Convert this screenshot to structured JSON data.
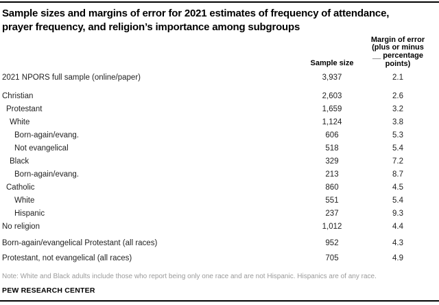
{
  "title_lines": [
    "Sample sizes and margins of error for 2021 estimates of frequency of attendance,",
    "prayer frequency, and religion’s importance among subgroups"
  ],
  "chart_data": {
    "type": "table",
    "title": "Sample sizes and margins of error for 2021 estimates of frequency of attendance, prayer frequency, and religion’s importance among subgroups",
    "columns": {
      "label": "",
      "sample_size": "Sample size",
      "margin_of_error_lines": [
        "Margin of error",
        "(plus or minus",
        "__ percentage",
        "points)"
      ]
    },
    "rows": [
      {
        "label": "2021 NPORS full sample (online/paper)",
        "indent": 0,
        "sample_size": "3,937",
        "margin_of_error": "2.1"
      },
      {
        "label": "Christian",
        "indent": 0,
        "sample_size": "2,603",
        "margin_of_error": "2.6"
      },
      {
        "label": "Protestant",
        "indent": 1,
        "sample_size": "1,659",
        "margin_of_error": "3.2"
      },
      {
        "label": "White",
        "indent": 2,
        "sample_size": "1,124",
        "margin_of_error": "3.8"
      },
      {
        "label": "Born-again/evang.",
        "indent": 3,
        "sample_size": "606",
        "margin_of_error": "5.3"
      },
      {
        "label": "Not evangelical",
        "indent": 3,
        "sample_size": "518",
        "margin_of_error": "5.4"
      },
      {
        "label": "Black",
        "indent": 2,
        "sample_size": "329",
        "margin_of_error": "7.2"
      },
      {
        "label": "Born-again/evang.",
        "indent": 3,
        "sample_size": "213",
        "margin_of_error": "8.7"
      },
      {
        "label": "Catholic",
        "indent": 1,
        "sample_size": "860",
        "margin_of_error": "4.5"
      },
      {
        "label": "White",
        "indent": 3,
        "sample_size": "551",
        "margin_of_error": "5.4"
      },
      {
        "label": "Hispanic",
        "indent": 3,
        "sample_size": "237",
        "margin_of_error": "9.3"
      },
      {
        "label": "No religion",
        "indent": 0,
        "sample_size": "1,012",
        "margin_of_error": "4.4"
      },
      {
        "label": "Born-again/evangelical Protestant (all races)",
        "indent": 0,
        "sample_size": "952",
        "margin_of_error": "4.3"
      },
      {
        "label": "Protestant, not evangelical (all races)",
        "indent": 0,
        "sample_size": "705",
        "margin_of_error": "4.9"
      }
    ],
    "note": "Note: White and Black adults include those who report being only one race and are not Hispanic. Hispanics are of any race.",
    "source": "PEW RESEARCH CENTER"
  }
}
